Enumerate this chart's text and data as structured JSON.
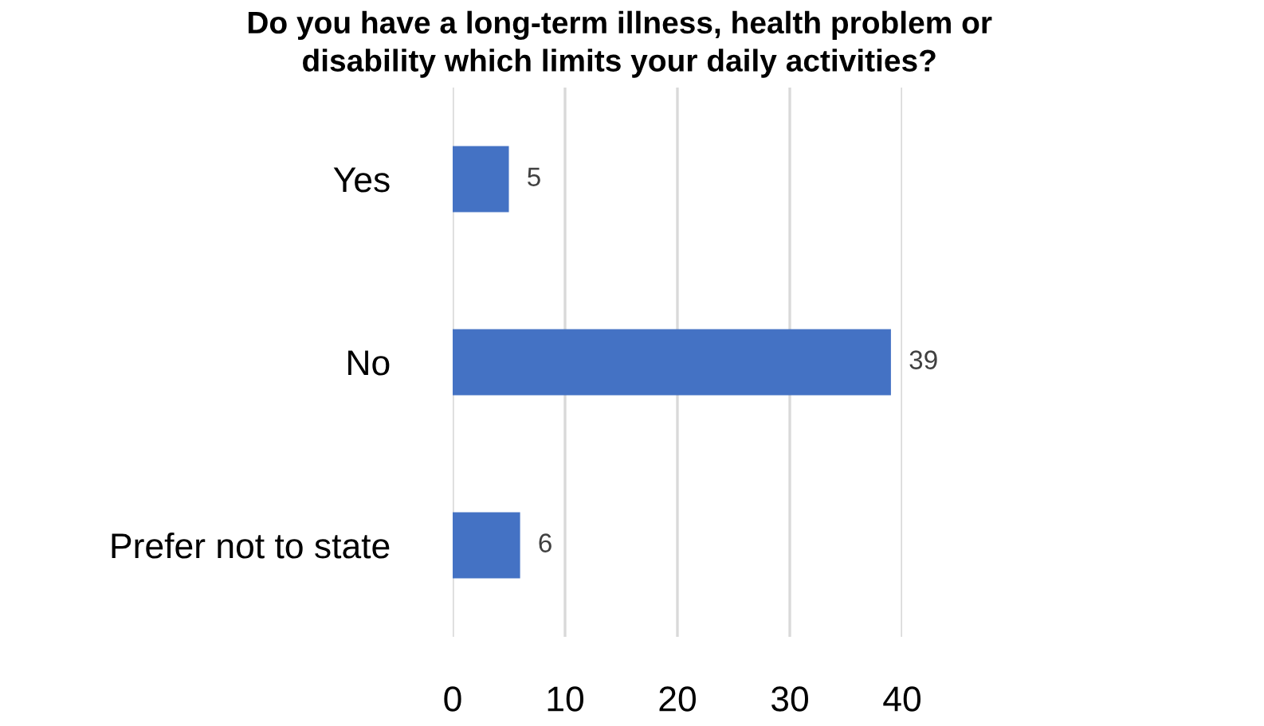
{
  "chart_data": {
    "type": "bar",
    "orientation": "horizontal",
    "title": "Do you have a long-term illness, health problem or\ndisability which limits your daily activities?",
    "categories": [
      "Yes",
      "No",
      "Prefer not to state"
    ],
    "values": [
      5,
      39,
      6
    ],
    "color": "#4472c4",
    "xlim": [
      0,
      40
    ],
    "xticks": [
      0,
      10,
      20,
      30,
      40
    ],
    "grid": "x",
    "data_labels": true
  }
}
